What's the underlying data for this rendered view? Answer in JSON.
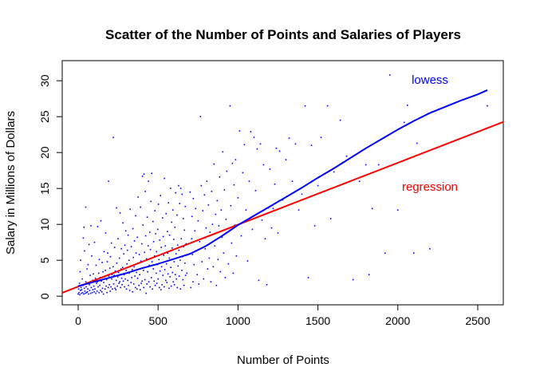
{
  "chart_data": {
    "type": "scatter",
    "title": "Scatter of the Number of Points and Salaries of Players",
    "xlabel": "Number of Points",
    "ylabel": "Salary in Millions of Dollars",
    "xlim": [
      -100,
      2660
    ],
    "ylim": [
      -1.2,
      32.8
    ],
    "xticks": [
      0,
      500,
      1000,
      1500,
      2000,
      2500
    ],
    "yticks": [
      0,
      5,
      10,
      15,
      20,
      25,
      30
    ],
    "grid": false,
    "point_color": "#0000ff",
    "points": [
      [
        0,
        0.3
      ],
      [
        3,
        1.0
      ],
      [
        5,
        0.5
      ],
      [
        8,
        1.8
      ],
      [
        10,
        0.2
      ],
      [
        12,
        3.4
      ],
      [
        14,
        0.8
      ],
      [
        15,
        5.0
      ],
      [
        18,
        1.2
      ],
      [
        20,
        0.4
      ],
      [
        22,
        0.9
      ],
      [
        25,
        2.4
      ],
      [
        28,
        0.5
      ],
      [
        30,
        1.5
      ],
      [
        32,
        8.1
      ],
      [
        35,
        0.3
      ],
      [
        36,
        9.6
      ],
      [
        38,
        1.1
      ],
      [
        40,
        6.3
      ],
      [
        42,
        0.7
      ],
      [
        45,
        0.4
      ],
      [
        47,
        12.4
      ],
      [
        48,
        2.0
      ],
      [
        50,
        1.3
      ],
      [
        52,
        0.5
      ],
      [
        55,
        3.8
      ],
      [
        58,
        0.6
      ],
      [
        60,
        1.0
      ],
      [
        62,
        4.4
      ],
      [
        65,
        0.3
      ],
      [
        68,
        7.2
      ],
      [
        70,
        1.6
      ],
      [
        72,
        0.8
      ],
      [
        75,
        2.9
      ],
      [
        78,
        0.4
      ],
      [
        80,
        9.8
      ],
      [
        82,
        1.2
      ],
      [
        85,
        5.6
      ],
      [
        88,
        0.5
      ],
      [
        90,
        2.2
      ],
      [
        92,
        0.9
      ],
      [
        95,
        3.1
      ],
      [
        98,
        1.4
      ],
      [
        100,
        0.6
      ],
      [
        102,
        7.5
      ],
      [
        105,
        1.0
      ],
      [
        108,
        2.5
      ],
      [
        110,
        0.4
      ],
      [
        112,
        4.3
      ],
      [
        115,
        1.8
      ],
      [
        118,
        0.7
      ],
      [
        120,
        2.0
      ],
      [
        122,
        9.7
      ],
      [
        125,
        1.3
      ],
      [
        128,
        3.2
      ],
      [
        130,
        0.5
      ],
      [
        132,
        5.1
      ],
      [
        135,
        1.5
      ],
      [
        138,
        2.6
      ],
      [
        140,
        0.8
      ],
      [
        142,
        10.5
      ],
      [
        145,
        2.1
      ],
      [
        148,
        0.6
      ],
      [
        150,
        4.7
      ],
      [
        152,
        1.1
      ],
      [
        155,
        3.4
      ],
      [
        158,
        0.3
      ],
      [
        160,
        1.9
      ],
      [
        162,
        6.2
      ],
      [
        165,
        2.7
      ],
      [
        168,
        1.0
      ],
      [
        170,
        3.6
      ],
      [
        172,
        8.8
      ],
      [
        175,
        1.4
      ],
      [
        178,
        2.3
      ],
      [
        180,
        0.5
      ],
      [
        182,
        4.8
      ],
      [
        185,
        6.0
      ],
      [
        188,
        1.2
      ],
      [
        190,
        16.0
      ],
      [
        192,
        2.8
      ],
      [
        195,
        1.6
      ],
      [
        198,
        3.9
      ],
      [
        200,
        0.7
      ],
      [
        202,
        5.5
      ],
      [
        205,
        1.3
      ],
      [
        208,
        7.4
      ],
      [
        210,
        2.4
      ],
      [
        212,
        3.0
      ],
      [
        215,
        1.0
      ],
      [
        218,
        4.1
      ],
      [
        220,
        22.1
      ],
      [
        222,
        1.7
      ],
      [
        225,
        2.9
      ],
      [
        228,
        6.8
      ],
      [
        230,
        1.1
      ],
      [
        232,
        3.5
      ],
      [
        235,
        0.9
      ],
      [
        238,
        2.2
      ],
      [
        240,
        12.3
      ],
      [
        242,
        4.6
      ],
      [
        245,
        1.4
      ],
      [
        248,
        2.7
      ],
      [
        250,
        8.0
      ],
      [
        252,
        3.3
      ],
      [
        255,
        1.8
      ],
      [
        258,
        5.3
      ],
      [
        260,
        2.0
      ],
      [
        262,
        11.6
      ],
      [
        265,
        1.2
      ],
      [
        268,
        3.8
      ],
      [
        270,
        6.6
      ],
      [
        272,
        2.5
      ],
      [
        275,
        1.6
      ],
      [
        278,
        4.0
      ],
      [
        280,
        10.2
      ],
      [
        282,
        2.1
      ],
      [
        285,
        5.9
      ],
      [
        288,
        3.0
      ],
      [
        290,
        1.3
      ],
      [
        292,
        7.1
      ],
      [
        295,
        2.4
      ],
      [
        298,
        9.1
      ],
      [
        300,
        3.6
      ],
      [
        302,
        1.0
      ],
      [
        305,
        4.5
      ],
      [
        308,
        6.4
      ],
      [
        310,
        2.2
      ],
      [
        312,
        8.5
      ],
      [
        315,
        1.5
      ],
      [
        318,
        5.0
      ],
      [
        320,
        3.2
      ],
      [
        322,
        0.8
      ],
      [
        325,
        12.1
      ],
      [
        328,
        4.2
      ],
      [
        330,
        1.9
      ],
      [
        332,
        6.9
      ],
      [
        335,
        2.6
      ],
      [
        338,
        3.7
      ],
      [
        340,
        0.6
      ],
      [
        342,
        9.4
      ],
      [
        345,
        5.4
      ],
      [
        348,
        1.7
      ],
      [
        350,
        4.1
      ],
      [
        352,
        7.7
      ],
      [
        355,
        2.8
      ],
      [
        358,
        1.2
      ],
      [
        360,
        11.2
      ],
      [
        362,
        6.0
      ],
      [
        365,
        3.3
      ],
      [
        368,
        1.0
      ],
      [
        370,
        8.2
      ],
      [
        372,
        2.5
      ],
      [
        375,
        13.8
      ],
      [
        378,
        4.6
      ],
      [
        380,
        1.5
      ],
      [
        382,
        5.8
      ],
      [
        385,
        3.0
      ],
      [
        388,
        0.9
      ],
      [
        390,
        12.4
      ],
      [
        392,
        4.9
      ],
      [
        395,
        1.8
      ],
      [
        398,
        7.3
      ],
      [
        400,
        2.1
      ],
      [
        402,
        16.7
      ],
      [
        405,
        9.9
      ],
      [
        408,
        3.6
      ],
      [
        410,
        1.2
      ],
      [
        412,
        17.0
      ],
      [
        415,
        6.1
      ],
      [
        418,
        2.3
      ],
      [
        420,
        14.6
      ],
      [
        422,
        8.4
      ],
      [
        425,
        0.4
      ],
      [
        428,
        5.2
      ],
      [
        430,
        1.7
      ],
      [
        432,
        11.0
      ],
      [
        435,
        3.4
      ],
      [
        438,
        7.0
      ],
      [
        440,
        16.0
      ],
      [
        442,
        2.0
      ],
      [
        445,
        4.3
      ],
      [
        448,
        8.9
      ],
      [
        450,
        1.3
      ],
      [
        452,
        6.5
      ],
      [
        455,
        13.2
      ],
      [
        458,
        2.6
      ],
      [
        460,
        17.1
      ],
      [
        462,
        4.8
      ],
      [
        465,
        1.0
      ],
      [
        468,
        10.4
      ],
      [
        470,
        3.8
      ],
      [
        472,
        7.6
      ],
      [
        475,
        2.1
      ],
      [
        478,
        5.6
      ],
      [
        480,
        11.9
      ],
      [
        482,
        1.5
      ],
      [
        485,
        8.7
      ],
      [
        488,
        3.2
      ],
      [
        490,
        6.2
      ],
      [
        492,
        1.8
      ],
      [
        495,
        4.4
      ],
      [
        498,
        9.3
      ],
      [
        500,
        2.4
      ],
      [
        502,
        12.8
      ],
      [
        505,
        5.1
      ],
      [
        508,
        1.2
      ],
      [
        510,
        7.8
      ],
      [
        512,
        3.5
      ],
      [
        515,
        14.0
      ],
      [
        518,
        0.9
      ],
      [
        520,
        6.8
      ],
      [
        522,
        4.1
      ],
      [
        525,
        1.6
      ],
      [
        528,
        10.9
      ],
      [
        530,
        2.9
      ],
      [
        532,
        8.3
      ],
      [
        535,
        5.7
      ],
      [
        538,
        1.3
      ],
      [
        540,
        16.4
      ],
      [
        542,
        3.7
      ],
      [
        545,
        7.0
      ],
      [
        548,
        2.2
      ],
      [
        550,
        11.5
      ],
      [
        552,
        4.5
      ],
      [
        555,
        1.9
      ],
      [
        558,
        9.0
      ],
      [
        560,
        6.0
      ],
      [
        562,
        3.1
      ],
      [
        565,
        13.0
      ],
      [
        568,
        1.1
      ],
      [
        570,
        5.3
      ],
      [
        572,
        8.5
      ],
      [
        575,
        2.7
      ],
      [
        578,
        15.0
      ],
      [
        580,
        4.0
      ],
      [
        582,
        1.4
      ],
      [
        585,
        10.3
      ],
      [
        588,
        6.7
      ],
      [
        590,
        3.3
      ],
      [
        592,
        12.0
      ],
      [
        595,
        2.0
      ],
      [
        598,
        7.9
      ],
      [
        600,
        4.8
      ],
      [
        602,
        1.6
      ],
      [
        605,
        9.6
      ],
      [
        608,
        3.0
      ],
      [
        610,
        14.4
      ],
      [
        612,
        5.9
      ],
      [
        615,
        2.4
      ],
      [
        618,
        11.3
      ],
      [
        620,
        1.2
      ],
      [
        622,
        7.1
      ],
      [
        625,
        4.2
      ],
      [
        628,
        15.4
      ],
      [
        630,
        6.4
      ],
      [
        632,
        2.8
      ],
      [
        635,
        12.9
      ],
      [
        638,
        5.0
      ],
      [
        640,
        1.0
      ],
      [
        642,
        15.0
      ],
      [
        645,
        8.0
      ],
      [
        648,
        3.6
      ],
      [
        650,
        14.2
      ],
      [
        652,
        5.5
      ],
      [
        655,
        2.3
      ],
      [
        658,
        10.8
      ],
      [
        660,
        6.9
      ],
      [
        662,
        1.5
      ],
      [
        665,
        9.2
      ],
      [
        668,
        4.6
      ],
      [
        670,
        12.5
      ],
      [
        672,
        2.9
      ],
      [
        675,
        7.3
      ],
      [
        678,
        5.7
      ],
      [
        680,
        3.2
      ],
      [
        700,
        14.5
      ],
      [
        705,
        1.2
      ],
      [
        710,
        8.0
      ],
      [
        712,
        11.1
      ],
      [
        715,
        5.8
      ],
      [
        718,
        2.0
      ],
      [
        720,
        13.6
      ],
      [
        725,
        4.4
      ],
      [
        730,
        9.1
      ],
      [
        735,
        12.2
      ],
      [
        740,
        6.3
      ],
      [
        745,
        3.0
      ],
      [
        750,
        10.5
      ],
      [
        755,
        1.7
      ],
      [
        760,
        7.6
      ],
      [
        765,
        25.0
      ],
      [
        770,
        15.4
      ],
      [
        775,
        4.8
      ],
      [
        780,
        11.9
      ],
      [
        785,
        2.4
      ],
      [
        790,
        14.1
      ],
      [
        795,
        6.6
      ],
      [
        800,
        9.5
      ],
      [
        805,
        16.0
      ],
      [
        810,
        3.8
      ],
      [
        815,
        12.7
      ],
      [
        820,
        5.3
      ],
      [
        825,
        8.9
      ],
      [
        830,
        2.0
      ],
      [
        835,
        14.6
      ],
      [
        840,
        10.0
      ],
      [
        845,
        4.1
      ],
      [
        850,
        18.4
      ],
      [
        855,
        7.0
      ],
      [
        860,
        11.4
      ],
      [
        865,
        1.5
      ],
      [
        870,
        13.3
      ],
      [
        875,
        5.1
      ],
      [
        880,
        9.8
      ],
      [
        885,
        16.6
      ],
      [
        890,
        3.4
      ],
      [
        895,
        12.0
      ],
      [
        900,
        8.2
      ],
      [
        905,
        20.1
      ],
      [
        910,
        6.0
      ],
      [
        915,
        14.8
      ],
      [
        920,
        2.6
      ],
      [
        925,
        10.7
      ],
      [
        930,
        17.4
      ],
      [
        940,
        4.5
      ],
      [
        950,
        26.5
      ],
      [
        955,
        12.6
      ],
      [
        960,
        7.4
      ],
      [
        965,
        18.5
      ],
      [
        970,
        3.2
      ],
      [
        975,
        15.5
      ],
      [
        980,
        9.9
      ],
      [
        985,
        19.0
      ],
      [
        990,
        5.6
      ],
      [
        1000,
        13.7
      ],
      [
        1010,
        23.0
      ],
      [
        1020,
        8.4
      ],
      [
        1030,
        17.2
      ],
      [
        1040,
        21.1
      ],
      [
        1050,
        12.0
      ],
      [
        1060,
        4.9
      ],
      [
        1070,
        16.0
      ],
      [
        1080,
        22.9
      ],
      [
        1090,
        9.3
      ],
      [
        1100,
        22.1
      ],
      [
        1110,
        14.7
      ],
      [
        1120,
        20.5
      ],
      [
        1130,
        2.2
      ],
      [
        1140,
        21.2
      ],
      [
        1150,
        10.6
      ],
      [
        1160,
        18.3
      ],
      [
        1170,
        8.0
      ],
      [
        1180,
        1.6
      ],
      [
        1190,
        12.3
      ],
      [
        1200,
        17.7
      ],
      [
        1210,
        9.5
      ],
      [
        1220,
        12.2
      ],
      [
        1230,
        15.6
      ],
      [
        1240,
        20.6
      ],
      [
        1250,
        8.8
      ],
      [
        1260,
        20.2
      ],
      [
        1280,
        13.4
      ],
      [
        1300,
        19.0
      ],
      [
        1320,
        22.0
      ],
      [
        1340,
        16.0
      ],
      [
        1360,
        21.2
      ],
      [
        1380,
        12.0
      ],
      [
        1400,
        14.2
      ],
      [
        1420,
        26.5
      ],
      [
        1440,
        2.6
      ],
      [
        1460,
        21.0
      ],
      [
        1480,
        9.8
      ],
      [
        1500,
        15.4
      ],
      [
        1520,
        22.1
      ],
      [
        1540,
        14.6
      ],
      [
        1560,
        26.5
      ],
      [
        1580,
        10.8
      ],
      [
        1600,
        17.3
      ],
      [
        1640,
        24.5
      ],
      [
        1680,
        19.5
      ],
      [
        1720,
        2.3
      ],
      [
        1760,
        16.0
      ],
      [
        1800,
        18.3
      ],
      [
        1820,
        3.0
      ],
      [
        1840,
        12.2
      ],
      [
        1880,
        18.3
      ],
      [
        1920,
        6.0
      ],
      [
        1950,
        30.8
      ],
      [
        2000,
        12.0
      ],
      [
        2040,
        24.2
      ],
      [
        2060,
        26.6
      ],
      [
        2100,
        6.0
      ],
      [
        2120,
        21.3
      ],
      [
        2200,
        6.6
      ],
      [
        2560,
        26.5
      ]
    ],
    "regression_line": {
      "label": "regression",
      "color": "#ff0000",
      "intercept": 1.34,
      "slope": 0.00862
    },
    "lowess_line": {
      "label": "lowess",
      "color": "#0000ff",
      "x": [
        0,
        100,
        200,
        300,
        400,
        500,
        600,
        700,
        800,
        900,
        1000,
        1100,
        1200,
        1300,
        1400,
        1500,
        1600,
        1700,
        1800,
        1900,
        2000,
        2100,
        2200,
        2300,
        2400,
        2500,
        2560
      ],
      "y": [
        1.4,
        2.0,
        2.6,
        3.2,
        3.9,
        4.5,
        5.2,
        5.9,
        7.0,
        8.4,
        9.9,
        11.2,
        12.5,
        13.8,
        15.1,
        16.5,
        17.8,
        19.2,
        20.6,
        21.9,
        23.2,
        24.4,
        25.5,
        26.4,
        27.3,
        28.1,
        28.7
      ]
    }
  }
}
